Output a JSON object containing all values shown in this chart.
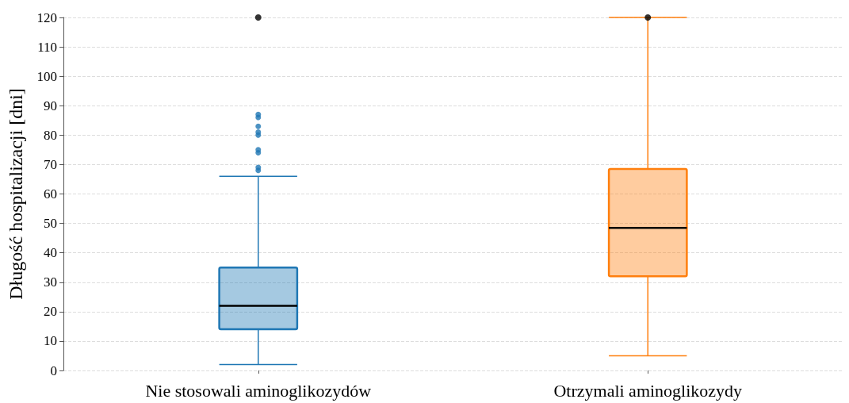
{
  "chart_data": {
    "type": "box",
    "ylabel": "Długość hospitalizacji [dni]",
    "categories": [
      "Nie stosowali aminoglikozydów",
      "Otrzymali aminoglikozydy"
    ],
    "colors": [
      "#1f77b4",
      "#ff7f0e"
    ],
    "boxes": [
      {
        "low": 2,
        "q1": 14,
        "median": 22,
        "q3": 35,
        "high": 66,
        "outliers": [
          68,
          69,
          74,
          75,
          80,
          81,
          83,
          86,
          87
        ]
      },
      {
        "low": 5,
        "q1": 32,
        "median": 48.5,
        "q3": 68.5,
        "high": 120
      }
    ],
    "series": [
      {
        "type": "scatter",
        "x": [
          "Nie stosowali aminoglikozydów",
          "Otrzymali aminoglikozydy"
        ],
        "values": [
          120,
          120
        ],
        "color": "#000000"
      }
    ],
    "ylim": [
      0,
      120
    ],
    "yticks": [
      0,
      10,
      20,
      30,
      40,
      50,
      60,
      70,
      80,
      90,
      100,
      110,
      120
    ],
    "grid": "y"
  }
}
